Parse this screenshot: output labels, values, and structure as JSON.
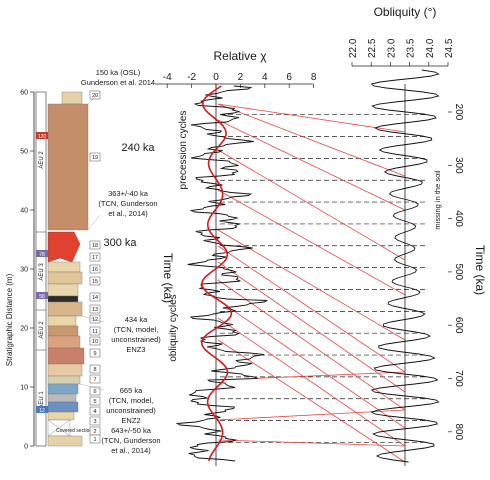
{
  "figure": {
    "strat_column": {
      "axis_label": "Stratigraphic Distance (m)",
      "ticks": [
        "0",
        "10",
        "20",
        "30",
        "40",
        "50",
        "60"
      ],
      "aeu_labels": [
        "AEU 2",
        "AEU 3",
        "AEU 2",
        "AEU 1"
      ],
      "bed_numbers": [
        "20",
        "19",
        "18",
        "17",
        "16",
        "15",
        "14",
        "13",
        "12",
        "11",
        "10",
        "9",
        "8",
        "7",
        "6",
        "5",
        "4",
        "3",
        "2",
        "1"
      ],
      "age_markers": [
        "120",
        "78",
        "58",
        "12"
      ],
      "covered_label": "Covered section"
    },
    "annotations": {
      "osl": "150 ka (OSL)",
      "osl_ref": "Gunderson et al. 2014",
      "a240": "240 ka",
      "a363": "363+/-40 ka",
      "a363_ref": "(TCN, Gunderson",
      "a363_ref2": "et al., 2014)",
      "a300": "300 ka",
      "a434": "434 ka",
      "a434_l2": "(TCN, model,",
      "a434_l3": "unconstrained)",
      "a434_l4": "ENZ3",
      "a665": "665 ka",
      "a665_l2": "(TCN, model,",
      "a665_l3": "unconstrained)",
      "a665_l4": "ENZ2",
      "a643": "643+/-50 ka",
      "a643_l2": "(TCN, Gunderson",
      "a643_l3": "et al., 2014)"
    },
    "chi_axis": {
      "label": "Relative χ",
      "ticks": [
        "-4",
        "-2",
        "0",
        "2",
        "4",
        "6",
        "8"
      ]
    },
    "obliquity_axis": {
      "label": "Obliquity (°)",
      "ticks": [
        "22.0",
        "22.5",
        "23.0",
        "23.5",
        "24.0",
        "24.5"
      ]
    },
    "time_axis": {
      "label": "Time (ka)",
      "ticks": [
        "200",
        "300",
        "400",
        "500",
        "600",
        "700",
        "800"
      ]
    },
    "labels": {
      "precession": "precession cycles",
      "obliquity": "obliquity cycles",
      "missing": "missing in the soil"
    },
    "colors": {
      "red_line": "#e8473f",
      "red_curve": "#d7191c",
      "unit_brown": "#c08a66",
      "unit_red": "#e0422f",
      "unit_tan": "#e9d5a8",
      "unit_blue": "#5d86c4"
    }
  }
}
